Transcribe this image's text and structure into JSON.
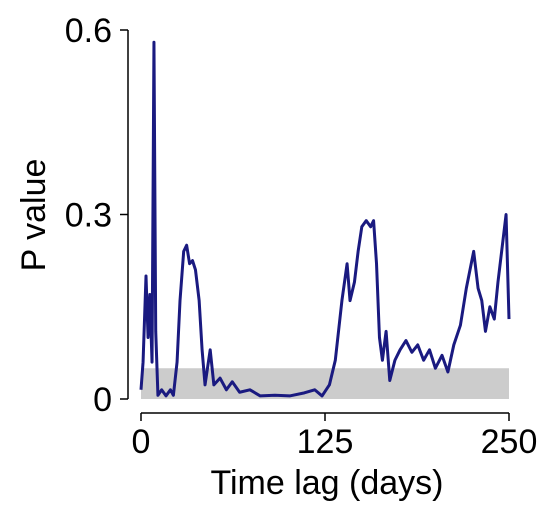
{
  "chart_data": {
    "type": "line",
    "xlabel": "Time lag (days)",
    "ylabel": "P value",
    "x": [
      0,
      1.4,
      3.4,
      4.8,
      6,
      7.5,
      8.8,
      10,
      11.5,
      14,
      17,
      20,
      22,
      24.5,
      26.5,
      29,
      31,
      33,
      35,
      37,
      39.5,
      41.5,
      43.5,
      47,
      49.5,
      53.7,
      58,
      62,
      67,
      74,
      81,
      91,
      101,
      111,
      118,
      123,
      128,
      132,
      136.5,
      140,
      142,
      145,
      147.5,
      150,
      153,
      156,
      158,
      160,
      162,
      164,
      166.5,
      169,
      172.5,
      176,
      180,
      184,
      188,
      192,
      196,
      200,
      204.5,
      208.5,
      212.5,
      217,
      221,
      226,
      229,
      231.5,
      234,
      237,
      240,
      242.5,
      245,
      248,
      250
    ],
    "series": [
      {
        "color": "#1a1a80",
        "values": [
          0.015,
          0.06,
          0.2,
          0.1,
          0.17,
          0.06,
          0.58,
          0.11,
          0.006,
          0.015,
          0.005,
          0.015,
          0.006,
          0.06,
          0.16,
          0.24,
          0.25,
          0.22,
          0.225,
          0.21,
          0.16,
          0.08,
          0.023,
          0.08,
          0.023,
          0.034,
          0.015,
          0.028,
          0.011,
          0.015,
          0.005,
          0.006,
          0.005,
          0.01,
          0.015,
          0.005,
          0.023,
          0.063,
          0.16,
          0.22,
          0.16,
          0.19,
          0.24,
          0.28,
          0.29,
          0.28,
          0.29,
          0.22,
          0.1,
          0.063,
          0.11,
          0.03,
          0.063,
          0.08,
          0.095,
          0.076,
          0.088,
          0.063,
          0.08,
          0.05,
          0.071,
          0.044,
          0.088,
          0.12,
          0.18,
          0.24,
          0.18,
          0.16,
          0.11,
          0.15,
          0.13,
          0.19,
          0.24,
          0.3,
          0.13
        ]
      }
    ],
    "band": {
      "ylim": [
        0,
        0.05
      ],
      "color": "#cccccc"
    },
    "xlim": [
      0,
      250
    ],
    "xticks": [
      0,
      125,
      250
    ],
    "ylim": [
      0,
      0.6
    ],
    "yticks": [
      0,
      0.3,
      0.6
    ]
  }
}
